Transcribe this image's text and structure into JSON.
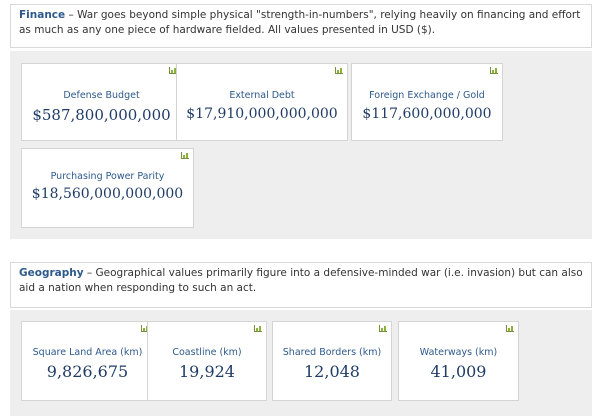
{
  "finance": {
    "title": "Finance",
    "description": " – War goes beyond simple physical \"strength-in-numbers\", relying heavily on financing and effort as much as any one piece of hardware fielded. All values presented in USD ($).",
    "cards": [
      {
        "label": "Defense Budget",
        "value": "$587,800,000,000"
      },
      {
        "label": "External Debt",
        "value": "$17,910,000,000,000"
      },
      {
        "label": "Foreign Exchange / Gold",
        "value": "$117,600,000,000"
      },
      {
        "label": "Purchasing Power Parity",
        "value": "$18,560,000,000,000"
      }
    ]
  },
  "geography": {
    "title": "Geography",
    "description": " – Geographical values primarily figure into a defensive-minded war (i.e. invasion) but can also aid a nation when responding to such an act.",
    "cards": [
      {
        "label": "Square Land Area (km)",
        "value": "9,826,675"
      },
      {
        "label": "Coastline (km)",
        "value": "19,924"
      },
      {
        "label": "Shared Borders (km)",
        "value": "12,048"
      },
      {
        "label": "Waterways (km)",
        "value": "41,009"
      }
    ]
  },
  "icons": {
    "card_corner": "bar-chart-icon"
  },
  "colors": {
    "accent": "#2d5a8c",
    "value": "#1f3c66",
    "panel": "#eeeeee",
    "icon": "#8ab33a"
  }
}
